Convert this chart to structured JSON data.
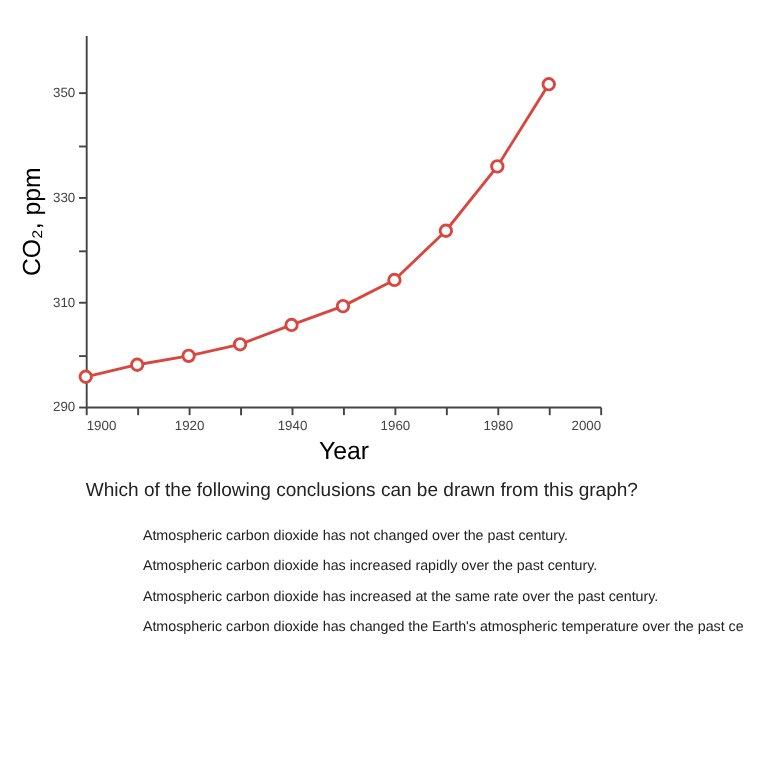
{
  "chart_data": {
    "type": "line",
    "xlabel": "Year",
    "ylabel": "CO₂, ppm",
    "x": [
      1900,
      1910,
      1920,
      1930,
      1940,
      1950,
      1960,
      1970,
      1980,
      1990
    ],
    "series": [
      {
        "color": "#d9463e",
        "values": [
          295.7,
          298.0,
          299.7,
          301.9,
          305.6,
          309.2,
          314.2,
          323.6,
          335.9,
          351.6
        ]
      }
    ],
    "xlim": [
      1900,
      2000
    ],
    "xticks": [
      1900,
      {
        "value": 1910,
        "label": null
      },
      1920,
      {
        "value": 1930,
        "label": null
      },
      1940,
      {
        "value": 1950,
        "label": null
      },
      1960,
      {
        "value": 1970,
        "label": null
      },
      1980,
      {
        "value": 1990,
        "label": null
      },
      2000
    ],
    "ylim": [
      290,
      361
    ],
    "yticks": [
      290,
      {
        "value": 300,
        "label": null
      },
      310,
      {
        "value": 320,
        "label": null
      },
      330,
      {
        "value": 340,
        "label": null
      },
      350
    ],
    "marker": "circle",
    "line_style": "solid",
    "grid": false,
    "legend": false,
    "annotations": [
      "Which of the following conclusions can be drawn from this graph?",
      "Atmospheric carbon dioxide has not changed over the past century.",
      "Atmospheric carbon dioxide has increased rapidly over the past century.",
      "Atmospheric carbon dioxide has increased at the same rate over the past century.",
      "Atmospheric carbon dioxide has changed the Earth's atmospheric temperature over the past ce"
    ]
  }
}
